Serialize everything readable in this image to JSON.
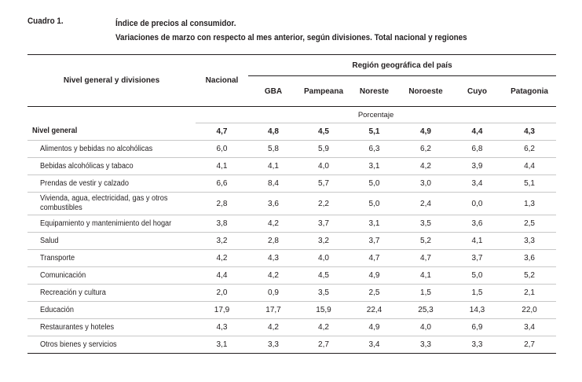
{
  "header": {
    "label": "Cuadro 1.",
    "title_line1": "Índice de precios al consumidor.",
    "title_line2": "Variaciones de marzo con respecto al mes anterior, según divisiones. Total nacional y regiones"
  },
  "table": {
    "row_header": "Nivel general y divisiones",
    "national_header": "Nacional",
    "region_group_header": "Región geográfica del país",
    "region_headers": [
      "GBA",
      "Pampeana",
      "Noreste",
      "Noroeste",
      "Cuyo",
      "Patagonia"
    ],
    "unit_label": "Porcentaje",
    "rows": [
      {
        "label": "Nivel general",
        "values": [
          "4,7",
          "4,8",
          "4,5",
          "5,1",
          "4,9",
          "4,4",
          "4,3"
        ]
      },
      {
        "label": "Alimentos y bebidas no alcohólicas",
        "values": [
          "6,0",
          "5,8",
          "5,9",
          "6,3",
          "6,2",
          "6,8",
          "6,2"
        ]
      },
      {
        "label": "Bebidas alcohólicas y tabaco",
        "values": [
          "4,1",
          "4,1",
          "4,0",
          "3,1",
          "4,2",
          "3,9",
          "4,4"
        ]
      },
      {
        "label": "Prendas de vestir y calzado",
        "values": [
          "6,6",
          "8,4",
          "5,7",
          "5,0",
          "3,0",
          "3,4",
          "5,1"
        ]
      },
      {
        "label": "Vivienda, agua, electricidad, gas y otros combustibles",
        "values": [
          "2,8",
          "3,6",
          "2,2",
          "5,0",
          "2,4",
          "0,0",
          "1,3"
        ]
      },
      {
        "label": "Equipamiento y mantenimiento del hogar",
        "values": [
          "3,8",
          "4,2",
          "3,7",
          "3,1",
          "3,5",
          "3,6",
          "2,5"
        ]
      },
      {
        "label": "Salud",
        "values": [
          "3,2",
          "2,8",
          "3,2",
          "3,7",
          "5,2",
          "4,1",
          "3,3"
        ]
      },
      {
        "label": "Transporte",
        "values": [
          "4,2",
          "4,3",
          "4,0",
          "4,7",
          "4,7",
          "3,7",
          "3,6"
        ]
      },
      {
        "label": "Comunicación",
        "values": [
          "4,4",
          "4,2",
          "4,5",
          "4,9",
          "4,1",
          "5,0",
          "5,2"
        ]
      },
      {
        "label": "Recreación y cultura",
        "values": [
          "2,0",
          "0,9",
          "3,5",
          "2,5",
          "1,5",
          "1,5",
          "2,1"
        ]
      },
      {
        "label": "Educación",
        "values": [
          "17,9",
          "17,7",
          "15,9",
          "22,4",
          "25,3",
          "14,3",
          "22,0"
        ]
      },
      {
        "label": "Restaurantes y hoteles",
        "values": [
          "4,3",
          "4,2",
          "4,2",
          "4,9",
          "4,0",
          "6,9",
          "3,4"
        ]
      },
      {
        "label": "Otros bienes y servicios",
        "values": [
          "3,1",
          "3,3",
          "2,7",
          "3,4",
          "3,3",
          "3,3",
          "2,7"
        ]
      }
    ]
  }
}
